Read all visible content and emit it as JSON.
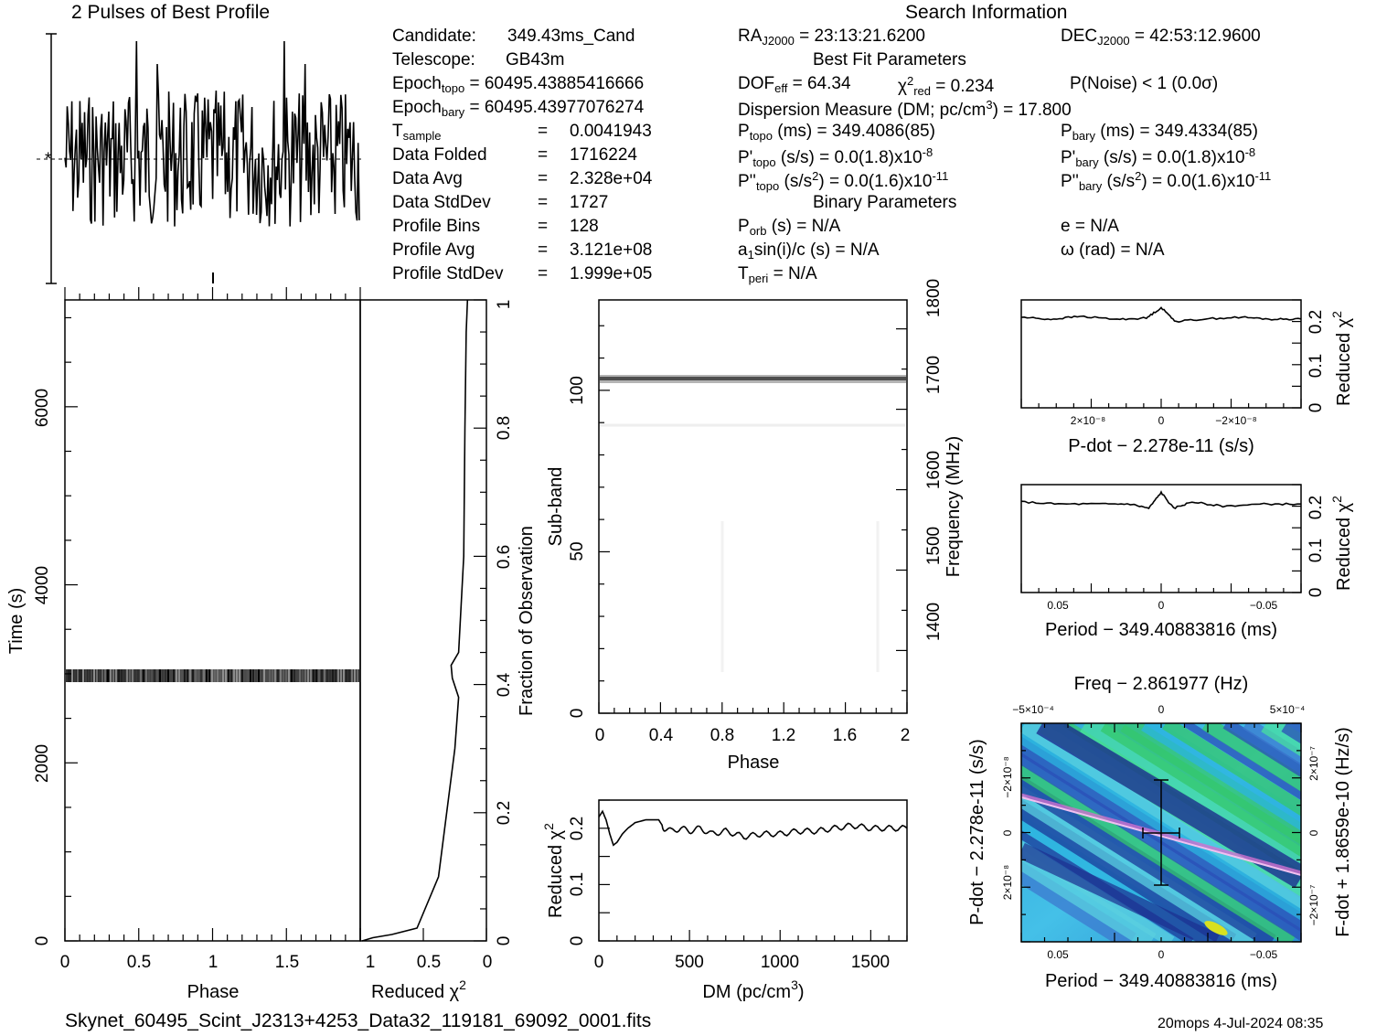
{
  "profile_title": "2 Pulses of Best Profile",
  "search_title": "Search Information",
  "info": {
    "candidate": [
      "Candidate:",
      "349.43ms_Cand"
    ],
    "telescope": [
      "Telescope:",
      "GB43m"
    ],
    "epoch_topo": [
      "Epoch",
      "topo",
      "= 60495.43885416666"
    ],
    "epoch_bary": [
      "Epoch",
      "bary",
      "= 60495.43977076274"
    ],
    "t_sample": [
      "T",
      "sample",
      "=",
      "0.0041943"
    ],
    "data_folded": [
      "Data Folded",
      "=",
      "1716224"
    ],
    "data_avg": [
      "Data Avg",
      "=",
      "2.328e+04"
    ],
    "data_stddev": [
      "Data StdDev",
      "=",
      "1727"
    ],
    "profile_bins": [
      "Profile Bins",
      "=",
      "128"
    ],
    "profile_avg": [
      "Profile Avg",
      "=",
      "3.121e+08"
    ],
    "profile_stddev": [
      "Profile StdDev",
      "=",
      "1.999e+05"
    ]
  },
  "search": {
    "ra": [
      "RA",
      "J2000",
      "= 23:13:21.6200"
    ],
    "dec": [
      "DEC",
      "J2000",
      "= 42:53:12.9600"
    ],
    "best_fit": "Best Fit Parameters",
    "dof": "DOF",
    "dof_sub": "eff",
    "dof_val": "= 64.34",
    "chi": "χ",
    "chi_sup": "2",
    "chi_sub": "red",
    "chi_val": "= 0.234",
    "pnoise": "P(Noise) < 1   (0.0σ)",
    "dm_line": "Dispersion Measure (DM; pc/cm",
    "dm_sup": "3",
    "dm_val": ") = 17.800",
    "p_topo": [
      "P",
      "topo",
      " (ms) =  349.4086(85)"
    ],
    "p_bary": [
      "P",
      "bary",
      " (ms) =  349.4334(85)"
    ],
    "pd_topo": [
      "P'",
      "topo",
      " (s/s) = 0.0(1.8)x10",
      "-8"
    ],
    "pd_bary": [
      "P'",
      "bary",
      " (s/s) = 0.0(1.8)x10",
      "-8"
    ],
    "pdd_topo": [
      "P''",
      "topo",
      " (s/s",
      "2",
      ") = 0.0(1.6)x10",
      "-11"
    ],
    "pdd_bary": [
      "P''",
      "bary",
      " (s/s",
      "2",
      ") = 0.0(1.6)x10",
      "-11"
    ],
    "binary": "Binary Parameters",
    "p_orb": [
      "P",
      "orb",
      " (s) = N/A"
    ],
    "e": "e = N/A",
    "a1": [
      "a",
      "1",
      "sin(i)/c (s) = N/A"
    ],
    "omega": "ω (rad) = N/A",
    "t_peri": [
      "T",
      "peri",
      " = N/A"
    ]
  },
  "footer": {
    "filename": "Skynet_60495_Scint_J2313+4253_Data32_119181_69092_0001.fits",
    "stamp": "20mops   4-Jul-2024 08:35"
  },
  "chart_data": [
    {
      "type": "line",
      "name": "profile",
      "x_range": [
        0,
        2
      ],
      "note_ticks": "none printed"
    },
    {
      "type": "heatmap",
      "name": "time-phase",
      "xlabel": "Phase",
      "ylabel": "Time (s)",
      "xlim": [
        0,
        2
      ],
      "ylim": [
        0,
        7200
      ],
      "x_ticks": [
        "0",
        "0.5",
        "1",
        "1.5"
      ],
      "y_ticks": [
        "0",
        "2000",
        "4000",
        "6000"
      ],
      "bright_band_time_s": 2970
    },
    {
      "type": "line",
      "name": "reduced-chi2-vs-fraction",
      "xlabel": "Reduced χ",
      "xlabel_sup": "2",
      "ylabel": "Fraction of Observation",
      "xlim": [
        1,
        0
      ],
      "ylim": [
        0,
        1
      ],
      "x_ticks": [
        "1",
        "0.5",
        "0"
      ],
      "y_ticks": [
        "0",
        "0.2",
        "0.4",
        "0.6",
        "0.8",
        "1"
      ],
      "x": [
        0.985,
        0.9,
        0.75,
        0.55,
        0.38,
        0.25,
        0.22,
        0.27,
        0.28,
        0.22,
        0.18,
        0.17,
        0.16,
        0.15
      ],
      "y": [
        0.0,
        0.005,
        0.01,
        0.02,
        0.1,
        0.3,
        0.38,
        0.41,
        0.43,
        0.45,
        0.6,
        0.8,
        0.95,
        1.0
      ]
    },
    {
      "type": "heatmap",
      "name": "subband-phase",
      "xlabel": "Phase",
      "ylabel": "Sub-band",
      "y2label": "Frequency (MHz)",
      "xlim": [
        0,
        2
      ],
      "ylim": [
        0,
        128
      ],
      "x_ticks": [
        "0",
        "0.4",
        "0.8",
        "1.2",
        "1.6",
        "2"
      ],
      "y_ticks": [
        "0",
        "50",
        "100"
      ],
      "y2_ticks": [
        "1400",
        "1500",
        "1600",
        "1700",
        "1800"
      ],
      "bright_subband": 103
    },
    {
      "type": "line",
      "name": "dm-curve",
      "xlabel": "DM (pc/cm",
      "xlabel_sup": "3",
      "xlabel_end": ")",
      "ylabel": "Reduced χ",
      "ylabel_sup": "2",
      "xlim": [
        0,
        1700
      ],
      "ylim": [
        0,
        0.25
      ],
      "x_ticks": [
        "0",
        "500",
        "1000",
        "1500"
      ],
      "y_ticks": [
        "0",
        "0.1",
        "0.2"
      ],
      "x": [
        0,
        20,
        40,
        60,
        80,
        100,
        130,
        160,
        200,
        260,
        330,
        360,
        400,
        450,
        500,
        560,
        620,
        700,
        800,
        900,
        1000,
        1100,
        1200,
        1300,
        1400,
        1500,
        1600,
        1700
      ],
      "y": [
        0.22,
        0.23,
        0.215,
        0.19,
        0.17,
        0.175,
        0.19,
        0.2,
        0.21,
        0.215,
        0.215,
        0.2,
        0.195,
        0.2,
        0.195,
        0.2,
        0.19,
        0.195,
        0.185,
        0.19,
        0.19,
        0.195,
        0.195,
        0.2,
        0.205,
        0.2,
        0.2,
        0.2
      ]
    },
    {
      "type": "line",
      "name": "pdot-curve",
      "xlabel": "P-dot − 2.278e-11 (s/s)",
      "ylabel": "Reduced χ",
      "ylabel_sup": "2",
      "xlim": [
        3.8e-08,
        -3.8e-08
      ],
      "ylim": [
        0,
        0.25
      ],
      "x_ticks": [
        "2×10⁻⁸",
        "0",
        "−2×10⁻⁸"
      ],
      "y_ticks": [
        "0",
        "0.1",
        "0.2"
      ],
      "x": [
        3.8e-08,
        3e-08,
        2.2e-08,
        1.2e-08,
        4e-09,
        0,
        -4e-09,
        -1.2e-08,
        -2.2e-08,
        -3e-08,
        -3.8e-08
      ],
      "y": [
        0.21,
        0.205,
        0.212,
        0.205,
        0.208,
        0.232,
        0.2,
        0.206,
        0.21,
        0.205,
        0.206
      ]
    },
    {
      "type": "line",
      "name": "period-curve",
      "xlabel": "Period − 349.40883816 (ms)",
      "ylabel": "Reduced χ",
      "ylabel_sup": "2",
      "xlim": [
        0.068,
        -0.068
      ],
      "ylim": [
        0,
        0.25
      ],
      "x_ticks": [
        "0.05",
        "0",
        "−0.05"
      ],
      "y_ticks": [
        "0",
        "0.1",
        "0.2"
      ],
      "x": [
        0.068,
        0.05,
        0.03,
        0.015,
        0.006,
        0,
        -0.006,
        -0.015,
        -0.03,
        -0.05,
        -0.068
      ],
      "y": [
        0.21,
        0.205,
        0.205,
        0.205,
        0.195,
        0.232,
        0.195,
        0.21,
        0.2,
        0.205,
        0.205
      ]
    },
    {
      "type": "heatmap",
      "name": "p-pdot-plane",
      "title": "Freq − 2.861977 (Hz)",
      "xlabel": "Period − 349.40883816 (ms)",
      "ylabel": "P-dot − 2.278e-11 (s/s)",
      "y2label": "F-dot + 1.8659e-10 (Hz/s)",
      "x_ticks": [
        "0.05",
        "0",
        "−0.05"
      ],
      "top_ticks": [
        "−5×10⁻⁴",
        "0",
        "5×10⁻⁴"
      ],
      "y_ticks": [
        "2×10⁻⁸",
        "0",
        "−2×10⁻⁸"
      ],
      "y2_ticks": [
        "−2×10⁻⁷",
        "0",
        "2×10⁻⁷"
      ]
    }
  ]
}
